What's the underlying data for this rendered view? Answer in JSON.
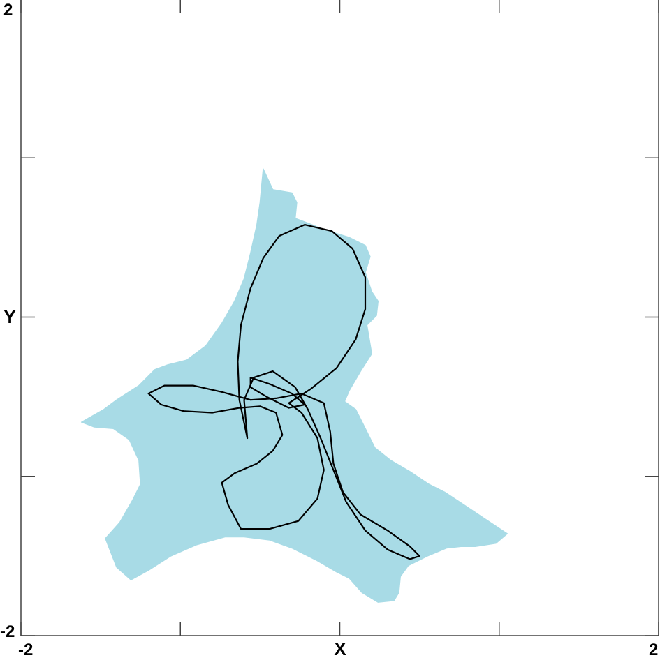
{
  "chart_data": {
    "type": "scatter",
    "title": "",
    "xlabel": "X",
    "ylabel": "Y",
    "xlim": [
      -2,
      2
    ],
    "ylim": [
      -2,
      2
    ],
    "x_tick_labels": [
      "-2",
      "2"
    ],
    "y_tick_labels": [
      "-2",
      "2"
    ],
    "x_ticks": [
      -2,
      -1,
      0,
      1,
      2
    ],
    "y_ticks": [
      -2,
      -1,
      0,
      1,
      2
    ],
    "grid": false,
    "colors": {
      "basin": "#a8dbe6",
      "attractor": "#000000",
      "axes": "#444444"
    },
    "basin_region": {
      "label": "",
      "outline": [
        [
          -0.48,
          0.93
        ],
        [
          -0.42,
          0.8
        ],
        [
          -0.3,
          0.78
        ],
        [
          -0.27,
          0.72
        ],
        [
          -0.28,
          0.62
        ],
        [
          -0.2,
          0.59
        ],
        [
          -0.1,
          0.55
        ],
        [
          0.06,
          0.5
        ],
        [
          0.16,
          0.45
        ],
        [
          0.19,
          0.38
        ],
        [
          0.16,
          0.28
        ],
        [
          0.2,
          0.16
        ],
        [
          0.24,
          0.1
        ],
        [
          0.23,
          0.01
        ],
        [
          0.17,
          -0.05
        ],
        [
          0.2,
          -0.23
        ],
        [
          0.13,
          -0.34
        ],
        [
          0.06,
          -0.46
        ],
        [
          0.03,
          -0.53
        ],
        [
          0.1,
          -0.58
        ],
        [
          0.14,
          -0.66
        ],
        [
          0.22,
          -0.82
        ],
        [
          0.32,
          -0.9
        ],
        [
          0.44,
          -0.97
        ],
        [
          0.56,
          -1.05
        ],
        [
          0.66,
          -1.1
        ],
        [
          0.78,
          -1.18
        ],
        [
          0.9,
          -1.26
        ],
        [
          1.05,
          -1.36
        ],
        [
          0.98,
          -1.42
        ],
        [
          0.85,
          -1.44
        ],
        [
          0.76,
          -1.44
        ],
        [
          0.67,
          -1.45
        ],
        [
          0.55,
          -1.5
        ],
        [
          0.43,
          -1.56
        ],
        [
          0.38,
          -1.63
        ],
        [
          0.37,
          -1.73
        ],
        [
          0.34,
          -1.78
        ],
        [
          0.24,
          -1.79
        ],
        [
          0.14,
          -1.73
        ],
        [
          0.06,
          -1.64
        ],
        [
          -0.02,
          -1.6
        ],
        [
          -0.14,
          -1.53
        ],
        [
          -0.3,
          -1.45
        ],
        [
          -0.44,
          -1.4
        ],
        [
          -0.6,
          -1.38
        ],
        [
          -0.72,
          -1.38
        ],
        [
          -0.9,
          -1.43
        ],
        [
          -1.06,
          -1.5
        ],
        [
          -1.2,
          -1.59
        ],
        [
          -1.31,
          -1.65
        ],
        [
          -1.4,
          -1.57
        ],
        [
          -1.47,
          -1.39
        ],
        [
          -1.38,
          -1.29
        ],
        [
          -1.3,
          -1.15
        ],
        [
          -1.25,
          -1.05
        ],
        [
          -1.26,
          -0.9
        ],
        [
          -1.32,
          -0.77
        ],
        [
          -1.42,
          -0.7
        ],
        [
          -1.54,
          -0.69
        ],
        [
          -1.62,
          -0.66
        ],
        [
          -1.48,
          -0.58
        ],
        [
          -1.4,
          -0.52
        ],
        [
          -1.26,
          -0.43
        ],
        [
          -1.16,
          -0.33
        ],
        [
          -1.08,
          -0.3
        ],
        [
          -0.96,
          -0.27
        ],
        [
          -0.84,
          -0.18
        ],
        [
          -0.74,
          -0.04
        ],
        [
          -0.66,
          0.1
        ],
        [
          -0.6,
          0.24
        ],
        [
          -0.56,
          0.4
        ],
        [
          -0.52,
          0.58
        ],
        [
          -0.5,
          0.72
        ],
        [
          -0.48,
          0.93
        ]
      ]
    },
    "series": [
      {
        "name": "",
        "type": "line",
        "closed": true,
        "points": [
          [
            -0.58,
            -0.76
          ],
          [
            -0.63,
            -0.52
          ],
          [
            -0.64,
            -0.28
          ],
          [
            -0.62,
            -0.05
          ],
          [
            -0.56,
            0.18
          ],
          [
            -0.48,
            0.37
          ],
          [
            -0.38,
            0.51
          ],
          [
            -0.22,
            0.58
          ],
          [
            -0.05,
            0.54
          ],
          [
            0.08,
            0.43
          ],
          [
            0.16,
            0.25
          ],
          [
            0.16,
            0.05
          ],
          [
            0.1,
            -0.14
          ],
          [
            -0.02,
            -0.32
          ],
          [
            -0.18,
            -0.45
          ],
          [
            -0.32,
            -0.54
          ],
          [
            -0.24,
            -0.6
          ],
          [
            -0.14,
            -0.76
          ],
          [
            -0.1,
            -0.96
          ],
          [
            -0.14,
            -1.14
          ],
          [
            -0.26,
            -1.28
          ],
          [
            -0.44,
            -1.33
          ],
          [
            -0.62,
            -1.33
          ],
          [
            -0.7,
            -1.18
          ],
          [
            -0.74,
            -1.04
          ],
          [
            -0.66,
            -0.98
          ],
          [
            -0.52,
            -0.92
          ],
          [
            -0.42,
            -0.84
          ],
          [
            -0.36,
            -0.74
          ],
          [
            -0.4,
            -0.6
          ],
          [
            -0.5,
            -0.56
          ],
          [
            -0.63,
            -0.57
          ],
          [
            -0.8,
            -0.6
          ],
          [
            -0.98,
            -0.59
          ],
          [
            -1.12,
            -0.55
          ],
          [
            -1.2,
            -0.48
          ],
          [
            -1.1,
            -0.43
          ],
          [
            -0.92,
            -0.43
          ],
          [
            -0.74,
            -0.47
          ],
          [
            -0.56,
            -0.52
          ],
          [
            -0.4,
            -0.51
          ],
          [
            -0.24,
            -0.48
          ],
          [
            -0.1,
            -0.54
          ],
          [
            -0.06,
            -0.72
          ],
          [
            -0.04,
            -0.92
          ],
          [
            0.02,
            -1.1
          ],
          [
            0.13,
            -1.24
          ],
          [
            0.3,
            -1.34
          ],
          [
            0.44,
            -1.44
          ],
          [
            0.5,
            -1.5
          ],
          [
            0.44,
            -1.52
          ],
          [
            0.3,
            -1.46
          ],
          [
            0.16,
            -1.34
          ],
          [
            0.04,
            -1.16
          ],
          [
            -0.04,
            -0.96
          ],
          [
            -0.12,
            -0.76
          ],
          [
            -0.2,
            -0.58
          ],
          [
            -0.28,
            -0.44
          ],
          [
            -0.42,
            -0.34
          ],
          [
            -0.54,
            -0.38
          ],
          [
            -0.6,
            -0.52
          ],
          [
            -0.58,
            -0.76
          ]
        ]
      },
      {
        "name": "",
        "type": "line",
        "closed": true,
        "points": [
          [
            -0.56,
            -0.38
          ],
          [
            -0.44,
            -0.42
          ],
          [
            -0.3,
            -0.48
          ],
          [
            -0.22,
            -0.55
          ],
          [
            -0.32,
            -0.57
          ],
          [
            -0.46,
            -0.5
          ],
          [
            -0.56,
            -0.44
          ],
          [
            -0.56,
            -0.38
          ]
        ]
      }
    ]
  }
}
